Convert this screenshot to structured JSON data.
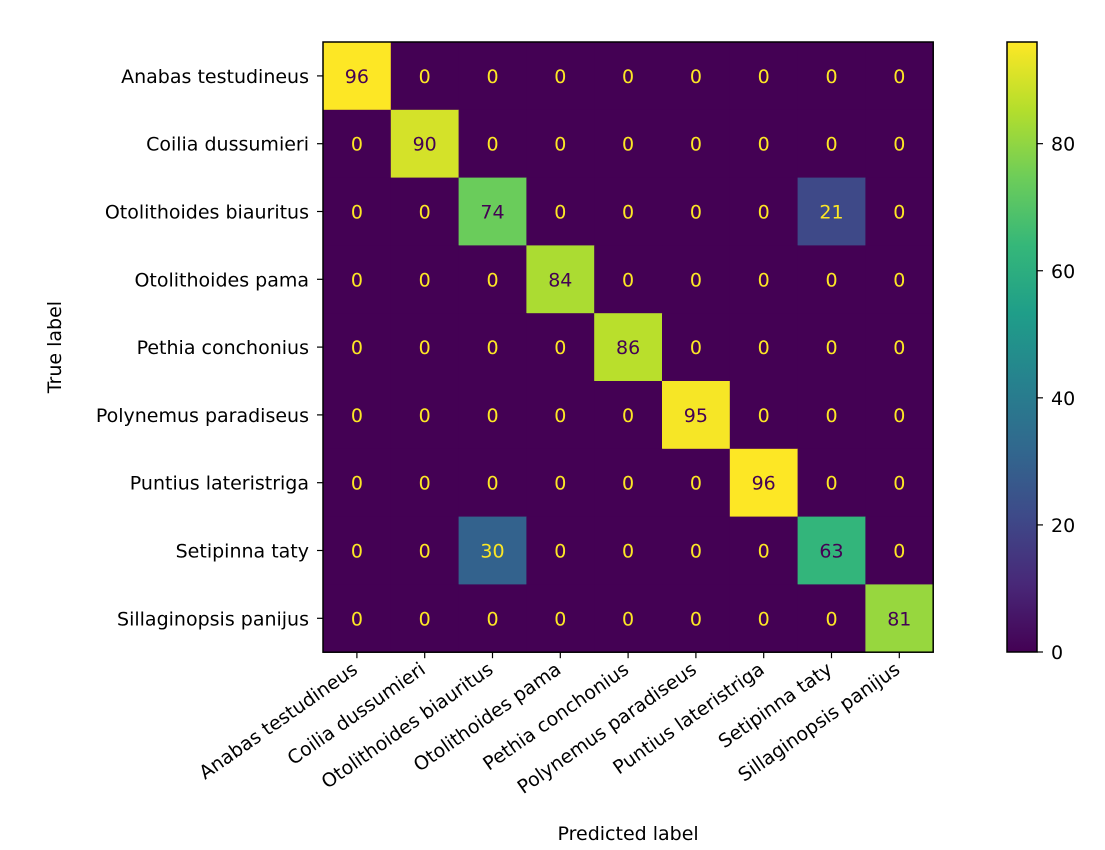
{
  "chart_data": {
    "type": "heatmap",
    "xlabel": "Predicted label",
    "ylabel": "True label",
    "x_categories": [
      "Anabas testudineus",
      "Coilia dussumieri",
      "Otolithoides biauritus",
      "Otolithoides pama",
      "Pethia conchonius",
      "Polynemus paradiseus",
      "Puntius lateristriga",
      "Setipinna taty",
      "Sillaginopsis panijus"
    ],
    "y_categories": [
      "Anabas testudineus",
      "Coilia dussumieri",
      "Otolithoides biauritus",
      "Otolithoides pama",
      "Pethia conchonius",
      "Polynemus paradiseus",
      "Puntius lateristriga",
      "Setipinna taty",
      "Sillaginopsis panijus"
    ],
    "values": [
      [
        96,
        0,
        0,
        0,
        0,
        0,
        0,
        0,
        0
      ],
      [
        0,
        90,
        0,
        0,
        0,
        0,
        0,
        0,
        0
      ],
      [
        0,
        0,
        74,
        0,
        0,
        0,
        0,
        21,
        0
      ],
      [
        0,
        0,
        0,
        84,
        0,
        0,
        0,
        0,
        0
      ],
      [
        0,
        0,
        0,
        0,
        86,
        0,
        0,
        0,
        0
      ],
      [
        0,
        0,
        0,
        0,
        0,
        95,
        0,
        0,
        0
      ],
      [
        0,
        0,
        0,
        0,
        0,
        0,
        96,
        0,
        0
      ],
      [
        0,
        0,
        30,
        0,
        0,
        0,
        0,
        63,
        0
      ],
      [
        0,
        0,
        0,
        0,
        0,
        0,
        0,
        0,
        81
      ]
    ],
    "colormap": "viridis",
    "colorbar": {
      "min": 0,
      "max": 96,
      "ticks": [
        0,
        20,
        40,
        60,
        80
      ]
    },
    "text_colors": {
      "on_dark": "#fde725",
      "on_light": "#440154"
    }
  }
}
